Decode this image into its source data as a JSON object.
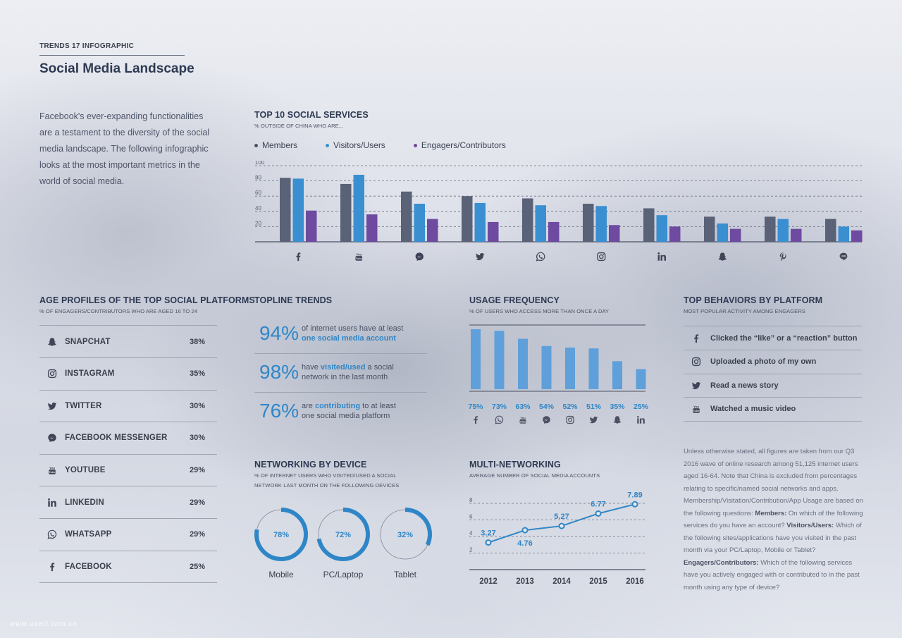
{
  "header": {
    "kicker": "TRENDS 17 INFOGRAPHIC",
    "title": "Social Media Landscape"
  },
  "intro": [
    "Facebook's ever-expanding functionalities",
    "are a testament to the diversity of the social",
    "media landscape. The following infographic",
    "looks at the most important metrics in the",
    "world of social media."
  ],
  "colors": {
    "members": "#5a6277",
    "visitors": "#3a8fd1",
    "engagers": "#6e4aa0",
    "accent": "#2f86c7",
    "usage_bar": "#5fa0da"
  },
  "top10": {
    "title": "TOP 10 SOCIAL SERVICES",
    "subtitle": "% OUTSIDE OF CHINA WHO ARE...",
    "legend": [
      "Members",
      "Visitors/Users",
      "Engagers/Contributors"
    ],
    "icons": [
      "facebook-icon",
      "youtube-icon",
      "messenger-icon",
      "twitter-icon",
      "whatsapp-icon",
      "instagram-icon",
      "linkedin-icon",
      "snapchat-icon",
      "pinterest-icon",
      "line-icon"
    ]
  },
  "age": {
    "title": "AGE PROFILES OF THE TOP SOCIAL PLATFORMS",
    "subtitle": "% OF ENGAGERS/CONTRIBUTORS WHO ARE AGED 16 TO 24",
    "rows": [
      {
        "name": "SNAPCHAT",
        "value": "38%",
        "icon": "snapchat-icon"
      },
      {
        "name": "INSTAGRAM",
        "value": "35%",
        "icon": "instagram-icon"
      },
      {
        "name": "TWITTER",
        "value": "30%",
        "icon": "twitter-icon"
      },
      {
        "name": "FACEBOOK MESSENGER",
        "value": "30%",
        "icon": "messenger-icon"
      },
      {
        "name": "YOUTUBE",
        "value": "29%",
        "icon": "youtube-icon"
      },
      {
        "name": "LINKEDIN",
        "value": "29%",
        "icon": "linkedin-icon"
      },
      {
        "name": "WHATSAPP",
        "value": "29%",
        "icon": "whatsapp-icon"
      },
      {
        "name": "FACEBOOK",
        "value": "25%",
        "icon": "facebook-icon"
      }
    ]
  },
  "topline": {
    "title": "TOPLINE TRENDS",
    "items": [
      {
        "pct": "94%",
        "l1a": "of internet users have at least",
        "l1b": "",
        "l1c": "",
        "l2a": "",
        "l2b": "one social media account"
      },
      {
        "pct": "98%",
        "l1a": "have ",
        "l1b": "visited/used",
        "l1c": " a social",
        "l2a": "network in the last month",
        "l2b": ""
      },
      {
        "pct": "76%",
        "l1a": "are ",
        "l1b": "contributing",
        "l1c": " to at least",
        "l2a": "one social media platform",
        "l2b": ""
      }
    ]
  },
  "usage": {
    "title": "USAGE FREQUENCY",
    "subtitle": "% OF USERS WHO ACCESS MORE THAN ONCE A DAY",
    "icons": [
      "facebook-icon",
      "whatsapp-icon",
      "youtube-icon",
      "messenger-icon",
      "instagram-icon",
      "twitter-icon",
      "snapchat-icon",
      "linkedin-icon"
    ]
  },
  "behaviors": {
    "title": "TOP BEHAVIORS BY PLATFORM",
    "subtitle": "MOST POPULAR ACTIVITY AMONG ENGAGERS",
    "rows": [
      {
        "text": "Clicked the “like” or a “reaction” button",
        "icon": "facebook-icon"
      },
      {
        "text": "Uploaded a photo of my own",
        "icon": "instagram-icon"
      },
      {
        "text": "Read a news story",
        "icon": "twitter-icon"
      },
      {
        "text": "Watched a music video",
        "icon": "youtube-icon"
      }
    ]
  },
  "device": {
    "title": "NETWORKING BY DEVICE",
    "subtitle_1": "% OF INTERNET USERS WHO VISITED/USED A SOCIAL",
    "subtitle_2": "NETWORK LAST MONTH ON THE FOLLOWING DEVICES"
  },
  "multi": {
    "title": "MULTI-NETWORKING",
    "subtitle": "AVERAGE NUMBER OF SOCIAL MEDIA ACCOUNTS"
  },
  "notes": {
    "p1": "Unless otherwise stated, all figures are taken from our Q3 2016 wave of online research among 51,125 internet users aged 16-64. Note that China is excluded from percentages relating to specific/named social networks and apps. Membership/Visitation/Contribution/App Usage are based on the following questions: ",
    "b1": "Members:",
    "p2": " On which of the following services do you have an account? ",
    "b2": "Visitors/Users:",
    "p3": " Which of the following sites/applications have you visited in the past month via your PC/Laptop, Mobile or Tablet? ",
    "b3": "Engagers/Contributors:",
    "p4": " Which of the following services have you actively engaged with or contributed to in the past month using any type of device?"
  },
  "watermark": "www.useit.com.cn",
  "chart_data": [
    {
      "type": "bar",
      "title": "TOP 10 SOCIAL SERVICES",
      "categories": [
        "Facebook",
        "YouTube",
        "Messenger",
        "Twitter",
        "WhatsApp",
        "Instagram",
        "LinkedIn",
        "Snapchat",
        "Pinterest",
        "LINE"
      ],
      "series": [
        {
          "name": "Members",
          "values": [
            84,
            76,
            66,
            60,
            57,
            50,
            44,
            33,
            33,
            30
          ]
        },
        {
          "name": "Visitors/Users",
          "values": [
            83,
            88,
            50,
            51,
            48,
            47,
            35,
            24,
            30,
            20
          ]
        },
        {
          "name": "Engagers/Contributors",
          "values": [
            41,
            36,
            30,
            26,
            26,
            22,
            20,
            17,
            17,
            15
          ]
        }
      ],
      "ylim": [
        0,
        100
      ],
      "yticks": [
        20,
        40,
        60,
        80,
        100
      ],
      "grid": true,
      "legend": "top-left"
    },
    {
      "type": "bar",
      "title": "USAGE FREQUENCY",
      "categories": [
        "Facebook",
        "WhatsApp",
        "YouTube",
        "Messenger",
        "Instagram",
        "Twitter",
        "Snapchat",
        "LinkedIn"
      ],
      "values": [
        75,
        73,
        63,
        54,
        52,
        51,
        35,
        25
      ],
      "labels": [
        "75%",
        "73%",
        "63%",
        "54%",
        "52%",
        "51%",
        "35%",
        "25%"
      ],
      "ylim": [
        0,
        80
      ]
    },
    {
      "type": "pie",
      "title": "NETWORKING BY DEVICE",
      "categories": [
        "Mobile",
        "PC/Laptop",
        "Tablet"
      ],
      "values": [
        78,
        72,
        32
      ],
      "labels": [
        "78%",
        "72%",
        "32%"
      ]
    },
    {
      "type": "line",
      "title": "MULTI-NETWORKING",
      "x": [
        "2012",
        "2013",
        "2014",
        "2015",
        "2016"
      ],
      "values": [
        3.27,
        4.76,
        5.27,
        6.77,
        7.89
      ],
      "labels": [
        "3.27",
        "4.76",
        "5.27",
        "6.77",
        "7.89"
      ],
      "ylim": [
        0,
        8
      ],
      "yticks": [
        2,
        4,
        6,
        8
      ],
      "grid": true
    }
  ]
}
